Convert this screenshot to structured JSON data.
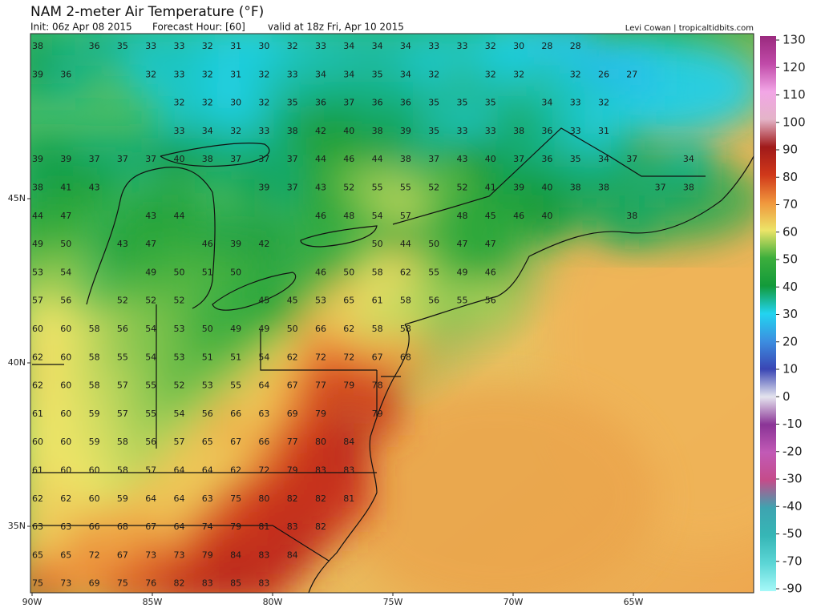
{
  "header": {
    "title": "NAM 2-meter Air Temperature (°F)",
    "init": "Init: 06z Apr 08 2015",
    "forecast_hour": "Forecast Hour: [60]",
    "valid": "valid at 18z Fri, Apr 10 2015",
    "credit": "Levi Cowan | tropicaltidbits.com"
  },
  "axes": {
    "x": [
      "90W",
      "85W",
      "80W",
      "75W",
      "70W",
      "65W"
    ],
    "y": [
      "45N",
      "40N",
      "35N"
    ]
  },
  "colorbar": {
    "ticks": [
      130,
      120,
      110,
      100,
      90,
      80,
      70,
      60,
      50,
      40,
      30,
      20,
      10,
      0,
      -10,
      -20,
      -30,
      -40,
      -50,
      -70,
      -90
    ],
    "colors": [
      "#9a2a7e",
      "#c04aa8",
      "#f2a6e6",
      "#e4b4c8",
      "#a01a1a",
      "#d0381a",
      "#f0963c",
      "#ece468",
      "#3cae3c",
      "#129a3a",
      "#22d4f0",
      "#3c8ee0",
      "#3a46b4",
      "#e4e4ee",
      "#8a3496",
      "#c25ab6",
      "#c44c8a",
      "#3ea4b0",
      "#36b6b6",
      "#5cd6d6",
      "#a6f8f8"
    ]
  },
  "stations": [
    [
      38,
      null,
      36,
      35,
      33,
      33,
      32,
      31,
      30,
      32,
      33,
      34,
      34,
      34,
      33,
      33,
      32,
      30,
      28,
      28
    ],
    [
      39,
      36,
      null,
      null,
      32,
      33,
      32,
      31,
      32,
      33,
      34,
      34,
      35,
      34,
      32,
      null,
      32,
      32,
      null,
      32,
      26,
      27
    ],
    [
      null,
      null,
      null,
      null,
      null,
      32,
      32,
      30,
      32,
      35,
      36,
      37,
      36,
      36,
      35,
      35,
      35,
      null,
      34,
      33,
      32
    ],
    [
      null,
      null,
      null,
      null,
      null,
      33,
      34,
      32,
      33,
      38,
      42,
      40,
      38,
      39,
      35,
      33,
      33,
      38,
      36,
      33,
      31
    ],
    [
      39,
      39,
      37,
      37,
      37,
      40,
      38,
      37,
      37,
      37,
      44,
      46,
      44,
      38,
      37,
      43,
      40,
      37,
      36,
      35,
      34,
      37,
      null,
      34
    ],
    [
      38,
      41,
      43,
      null,
      null,
      null,
      null,
      null,
      39,
      37,
      43,
      52,
      55,
      55,
      52,
      52,
      41,
      39,
      40,
      38,
      38,
      null,
      37,
      38
    ],
    [
      44,
      47,
      null,
      null,
      43,
      44,
      null,
      null,
      null,
      null,
      46,
      48,
      54,
      57,
      null,
      48,
      45,
      46,
      40,
      null,
      null,
      38
    ],
    [
      49,
      50,
      null,
      43,
      47,
      null,
      46,
      39,
      42,
      null,
      null,
      null,
      50,
      44,
      50,
      47,
      47
    ],
    [
      53,
      54,
      null,
      null,
      49,
      50,
      51,
      50,
      null,
      null,
      46,
      50,
      58,
      62,
      55,
      49,
      46
    ],
    [
      57,
      56,
      null,
      52,
      52,
      52,
      null,
      null,
      45,
      45,
      53,
      65,
      61,
      58,
      56,
      55,
      56
    ],
    [
      60,
      60,
      58,
      56,
      54,
      53,
      50,
      49,
      49,
      50,
      66,
      62,
      58,
      58
    ],
    [
      62,
      60,
      58,
      55,
      54,
      53,
      51,
      51,
      54,
      62,
      72,
      72,
      67,
      68
    ],
    [
      62,
      60,
      58,
      57,
      55,
      52,
      53,
      55,
      64,
      67,
      77,
      79,
      78
    ],
    [
      61,
      60,
      59,
      57,
      55,
      54,
      56,
      66,
      63,
      69,
      79,
      null,
      79
    ],
    [
      60,
      60,
      59,
      58,
      56,
      57,
      65,
      67,
      66,
      77,
      80,
      84
    ],
    [
      61,
      60,
      60,
      58,
      57,
      64,
      64,
      62,
      72,
      79,
      83,
      83
    ],
    [
      62,
      62,
      60,
      59,
      64,
      64,
      63,
      75,
      80,
      82,
      82,
      81
    ],
    [
      63,
      63,
      66,
      68,
      67,
      64,
      74,
      79,
      81,
      83,
      82
    ],
    [
      65,
      65,
      72,
      67,
      73,
      73,
      79,
      84,
      83,
      84
    ],
    [
      75,
      73,
      69,
      75,
      76,
      82,
      83,
      85,
      83
    ]
  ]
}
